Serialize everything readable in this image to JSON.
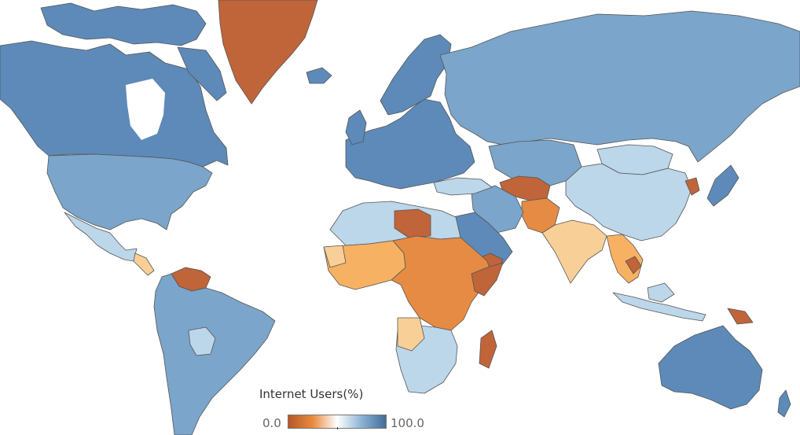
{
  "legend": {
    "title": "Internet Users(%)",
    "min_label": "0.0",
    "max_label": "100.0",
    "min_value": 0.0,
    "max_value": 100.0,
    "color_low": "#b5582a",
    "color_mid": "#ffffff",
    "color_high": "#3f6d99"
  },
  "palette": {
    "very_low": "#c0643a",
    "low": "#e68b43",
    "mid_low": "#f7b163",
    "lower_mid": "#f9cf98",
    "mid_high": "#bcd6ea",
    "high": "#7ba5ca",
    "very_high": "#5d8ab8"
  },
  "map_colors": {
    "greenland": "very_low",
    "north_america_high": "very_high",
    "usa": "high",
    "mexico": "mid_high",
    "venezuela": "very_low",
    "south_america": "high",
    "europe": "very_high",
    "russia": "high",
    "china": "mid_high",
    "india": "lower_mid",
    "southeast_asia": "mid_low",
    "north_africa": "mid_high",
    "west_africa": "mid_low",
    "central_africa": "low",
    "southern_africa": "mid_high",
    "arabia": "very_high",
    "afghanistan": "very_low",
    "pakistan": "low",
    "madagascar": "very_low",
    "australia": "very_high",
    "indonesia": "mid_high",
    "papua_new_guinea": "very_low"
  }
}
